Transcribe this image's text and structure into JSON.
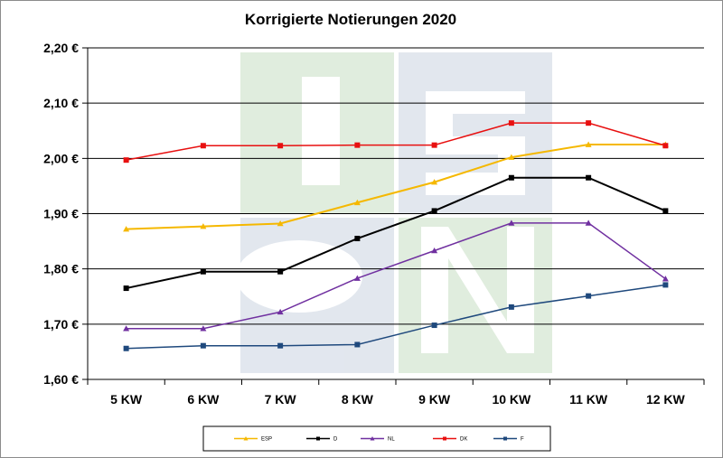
{
  "chart_data": {
    "type": "line",
    "title": "Korrigierte Notierungen 2020",
    "xlabel": "",
    "ylabel": "",
    "categories": [
      "5 KW",
      "6 KW",
      "7 KW",
      "8 KW",
      "9 KW",
      "10 KW",
      "11 KW",
      "12 KW"
    ],
    "yticks": [
      "1,60 €",
      "1,70 €",
      "1,80 €",
      "1,90 €",
      "2,00 €",
      "2,10 €",
      "2,20 €"
    ],
    "ylim": [
      1.6,
      2.2
    ],
    "grid": true,
    "legend_position": "bottom",
    "series": [
      {
        "name": "ESP",
        "color": "#F5B800",
        "marker": "triangle",
        "values": [
          1.872,
          1.877,
          1.882,
          1.92,
          1.957,
          2.002,
          2.025,
          2.025
        ]
      },
      {
        "name": "D",
        "color": "#000000",
        "marker": "square",
        "values": [
          1.765,
          1.795,
          1.795,
          1.855,
          1.905,
          1.965,
          1.965,
          1.905
        ]
      },
      {
        "name": "NL",
        "color": "#7030A0",
        "marker": "triangle",
        "values": [
          1.692,
          1.692,
          1.722,
          1.783,
          1.833,
          1.883,
          1.883,
          1.782
        ]
      },
      {
        "name": "DK",
        "color": "#E81010",
        "marker": "square",
        "values": [
          1.997,
          2.023,
          2.023,
          2.024,
          2.024,
          2.064,
          2.064,
          2.023
        ]
      },
      {
        "name": "F",
        "color": "#1F497D",
        "marker": "square",
        "values": [
          1.656,
          1.661,
          1.661,
          1.663,
          1.698,
          1.731,
          1.751,
          1.771
        ]
      }
    ]
  }
}
